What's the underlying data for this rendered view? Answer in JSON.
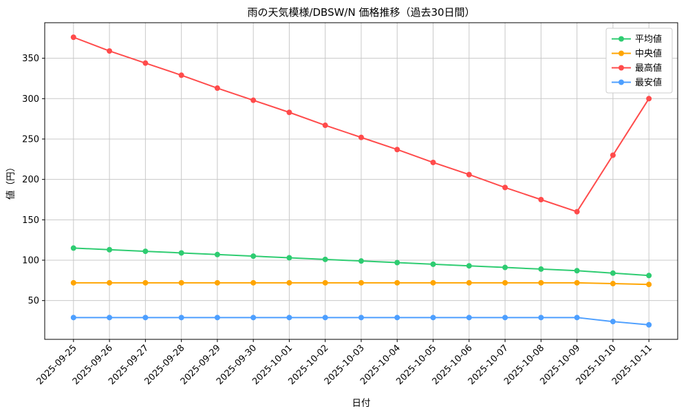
{
  "chart_data": {
    "type": "line",
    "title": "雨の天気模様/DBSW/N 価格推移（過去30日間）",
    "xlabel": "日付",
    "ylabel": "値（円）",
    "x": [
      "2025-09-25",
      "2025-09-26",
      "2025-09-27",
      "2025-09-28",
      "2025-09-29",
      "2025-09-30",
      "2025-10-01",
      "2025-10-02",
      "2025-10-03",
      "2025-10-04",
      "2025-10-05",
      "2025-10-06",
      "2025-10-07",
      "2025-10-08",
      "2025-10-09",
      "2025-10-10",
      "2025-10-11"
    ],
    "series": [
      {
        "key": "average",
        "name": "平均値",
        "color": "#2ecc71",
        "values": [
          115,
          113,
          111,
          109,
          107,
          105,
          103,
          101,
          99,
          97,
          95,
          93,
          91,
          89,
          87,
          84,
          81
        ]
      },
      {
        "key": "median",
        "name": "中央値",
        "color": "#ffa502",
        "values": [
          72,
          72,
          72,
          72,
          72,
          72,
          72,
          72,
          72,
          72,
          72,
          72,
          72,
          72,
          72,
          71,
          70
        ]
      },
      {
        "key": "max",
        "name": "最高値",
        "color": "#ff4b4b",
        "values": [
          376,
          359,
          344,
          329,
          313,
          298,
          283,
          267,
          252,
          237,
          221,
          206,
          190,
          175,
          160,
          230,
          300
        ]
      },
      {
        "key": "min",
        "name": "最安値",
        "color": "#4d9fff",
        "values": [
          29,
          29,
          29,
          29,
          29,
          29,
          29,
          29,
          29,
          29,
          29,
          29,
          29,
          29,
          29,
          24,
          20
        ]
      }
    ],
    "ylim": [
      2,
      394
    ],
    "yticks": [
      50,
      100,
      150,
      200,
      250,
      300,
      350
    ],
    "grid": true,
    "grid_color": "#c8c8c8",
    "legend_position": "upper right",
    "background": "#ffffff"
  }
}
